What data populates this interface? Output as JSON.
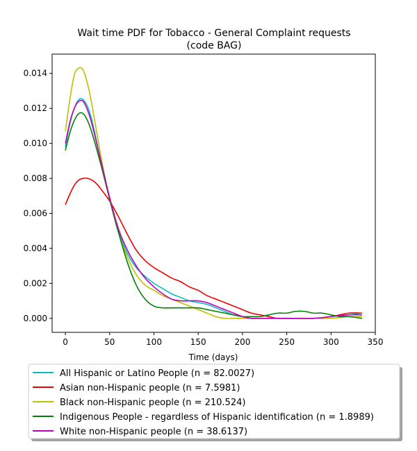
{
  "chart_data": {
    "type": "line",
    "title": [
      "Wait time PDF for Tobacco - General Complaint  requests",
      "(code BAG)"
    ],
    "xlabel": "Time (days)",
    "ylabel": "",
    "xlim": [
      -15,
      350
    ],
    "ylim": [
      -0.0008,
      0.0151
    ],
    "xticks": [
      0,
      50,
      100,
      150,
      200,
      250,
      300,
      350
    ],
    "yticks": [
      0.0,
      0.002,
      0.004,
      0.006,
      0.008,
      0.01,
      0.012,
      0.014
    ],
    "ytick_labels": [
      "0.000",
      "0.002",
      "0.004",
      "0.006",
      "0.008",
      "0.010",
      "0.012",
      "0.014"
    ],
    "grid": false,
    "legend_placement": "below",
    "series": [
      {
        "name": "All Hispanic or Latino People (n = 82.0027)",
        "color": "#00bfbf",
        "points": [
          [
            0,
            0.0098
          ],
          [
            5,
            0.0111
          ],
          [
            10,
            0.012
          ],
          [
            15,
            0.0125
          ],
          [
            20,
            0.0125
          ],
          [
            25,
            0.0121
          ],
          [
            30,
            0.0113
          ],
          [
            40,
            0.009
          ],
          [
            50,
            0.0068
          ],
          [
            60,
            0.005
          ],
          [
            70,
            0.0037
          ],
          [
            80,
            0.0029
          ],
          [
            90,
            0.0024
          ],
          [
            100,
            0.002
          ],
          [
            110,
            0.0017
          ],
          [
            120,
            0.0014
          ],
          [
            130,
            0.0012
          ],
          [
            140,
            0.001
          ],
          [
            150,
            0.0009
          ],
          [
            160,
            0.0008
          ],
          [
            170,
            0.0006
          ],
          [
            180,
            0.0004
          ],
          [
            190,
            0.0002
          ],
          [
            200,
            0.0001
          ],
          [
            210,
            0.0
          ],
          [
            220,
            0.0
          ],
          [
            240,
            0.0
          ],
          [
            260,
            0.0
          ],
          [
            280,
            0.0
          ],
          [
            300,
            0.0001
          ],
          [
            320,
            0.0002
          ],
          [
            335,
            0.0003
          ]
        ]
      },
      {
        "name": "Asian non-Hispanic people (n = 7.5981)",
        "color": "#ee0000",
        "points": [
          [
            0,
            0.0065
          ],
          [
            5,
            0.0071
          ],
          [
            10,
            0.0076
          ],
          [
            15,
            0.0079
          ],
          [
            20,
            0.008
          ],
          [
            25,
            0.008
          ],
          [
            30,
            0.0079
          ],
          [
            35,
            0.0077
          ],
          [
            40,
            0.0074
          ],
          [
            50,
            0.0067
          ],
          [
            60,
            0.0058
          ],
          [
            70,
            0.0048
          ],
          [
            80,
            0.0039
          ],
          [
            90,
            0.0033
          ],
          [
            100,
            0.0029
          ],
          [
            110,
            0.0026
          ],
          [
            120,
            0.0023
          ],
          [
            130,
            0.0021
          ],
          [
            140,
            0.0018
          ],
          [
            150,
            0.0016
          ],
          [
            160,
            0.0013
          ],
          [
            170,
            0.0011
          ],
          [
            180,
            0.0009
          ],
          [
            190,
            0.0007
          ],
          [
            200,
            0.0005
          ],
          [
            210,
            0.0003
          ],
          [
            220,
            0.0002
          ],
          [
            230,
            0.0001
          ],
          [
            240,
            0.0
          ],
          [
            260,
            0.0
          ],
          [
            280,
            0.0
          ],
          [
            300,
            0.0001
          ],
          [
            320,
            0.0003
          ],
          [
            335,
            0.0003
          ]
        ]
      },
      {
        "name": "Black non-Hispanic people (n = 210.524)",
        "color": "#bfbf00",
        "points": [
          [
            0,
            0.0107
          ],
          [
            5,
            0.0125
          ],
          [
            10,
            0.0139
          ],
          [
            15,
            0.0143
          ],
          [
            20,
            0.0142
          ],
          [
            25,
            0.0134
          ],
          [
            30,
            0.0122
          ],
          [
            40,
            0.0093
          ],
          [
            50,
            0.0068
          ],
          [
            60,
            0.0049
          ],
          [
            70,
            0.0035
          ],
          [
            80,
            0.0025
          ],
          [
            90,
            0.0019
          ],
          [
            100,
            0.0016
          ],
          [
            110,
            0.0013
          ],
          [
            120,
            0.0011
          ],
          [
            130,
            0.0009
          ],
          [
            140,
            0.0007
          ],
          [
            150,
            0.0005
          ],
          [
            160,
            0.0003
          ],
          [
            170,
            0.0001
          ],
          [
            180,
            0.0
          ],
          [
            190,
            0.0
          ],
          [
            200,
            0.0
          ],
          [
            220,
            0.0
          ],
          [
            240,
            0.0
          ],
          [
            260,
            0.0
          ],
          [
            280,
            0.0
          ],
          [
            300,
            0.0
          ],
          [
            320,
            0.0001
          ],
          [
            335,
            0.0001
          ]
        ]
      },
      {
        "name": "Indigenous People - regardless of Hispanic identification (n = 1.8989)",
        "color": "#008000",
        "points": [
          [
            0,
            0.0096
          ],
          [
            5,
            0.0106
          ],
          [
            10,
            0.0113
          ],
          [
            15,
            0.0117
          ],
          [
            20,
            0.0117
          ],
          [
            25,
            0.0113
          ],
          [
            30,
            0.0106
          ],
          [
            40,
            0.0088
          ],
          [
            50,
            0.0068
          ],
          [
            60,
            0.0049
          ],
          [
            70,
            0.0032
          ],
          [
            80,
            0.0019
          ],
          [
            90,
            0.0011
          ],
          [
            100,
            0.0007
          ],
          [
            110,
            0.0006
          ],
          [
            120,
            0.0006
          ],
          [
            130,
            0.0006
          ],
          [
            140,
            0.0006
          ],
          [
            150,
            0.0006
          ],
          [
            160,
            0.0005
          ],
          [
            170,
            0.0004
          ],
          [
            180,
            0.0003
          ],
          [
            190,
            0.0002
          ],
          [
            200,
            0.0001
          ],
          [
            210,
            0.0001
          ],
          [
            220,
            0.0001
          ],
          [
            230,
            0.0002
          ],
          [
            240,
            0.0003
          ],
          [
            250,
            0.0003
          ],
          [
            260,
            0.0004
          ],
          [
            270,
            0.0004
          ],
          [
            280,
            0.0003
          ],
          [
            290,
            0.0003
          ],
          [
            300,
            0.0002
          ],
          [
            310,
            0.0001
          ],
          [
            320,
            0.0001
          ],
          [
            335,
            0.0
          ]
        ]
      },
      {
        "name": "White non-Hispanic people (n = 38.6137)",
        "color": "#bf00bf",
        "points": [
          [
            0,
            0.01
          ],
          [
            5,
            0.0112
          ],
          [
            10,
            0.012
          ],
          [
            15,
            0.0124
          ],
          [
            20,
            0.0124
          ],
          [
            25,
            0.0119
          ],
          [
            30,
            0.0111
          ],
          [
            40,
            0.009
          ],
          [
            50,
            0.0069
          ],
          [
            60,
            0.0051
          ],
          [
            70,
            0.0039
          ],
          [
            80,
            0.003
          ],
          [
            90,
            0.0023
          ],
          [
            100,
            0.0018
          ],
          [
            110,
            0.0014
          ],
          [
            120,
            0.0011
          ],
          [
            130,
            0.001
          ],
          [
            140,
            0.001
          ],
          [
            150,
            0.001
          ],
          [
            160,
            0.0009
          ],
          [
            170,
            0.0007
          ],
          [
            180,
            0.0005
          ],
          [
            190,
            0.0003
          ],
          [
            200,
            0.0001
          ],
          [
            210,
            0.0
          ],
          [
            220,
            0.0
          ],
          [
            240,
            0.0
          ],
          [
            260,
            0.0
          ],
          [
            280,
            0.0
          ],
          [
            300,
            0.0001
          ],
          [
            320,
            0.0002
          ],
          [
            335,
            0.0002
          ]
        ]
      }
    ]
  }
}
